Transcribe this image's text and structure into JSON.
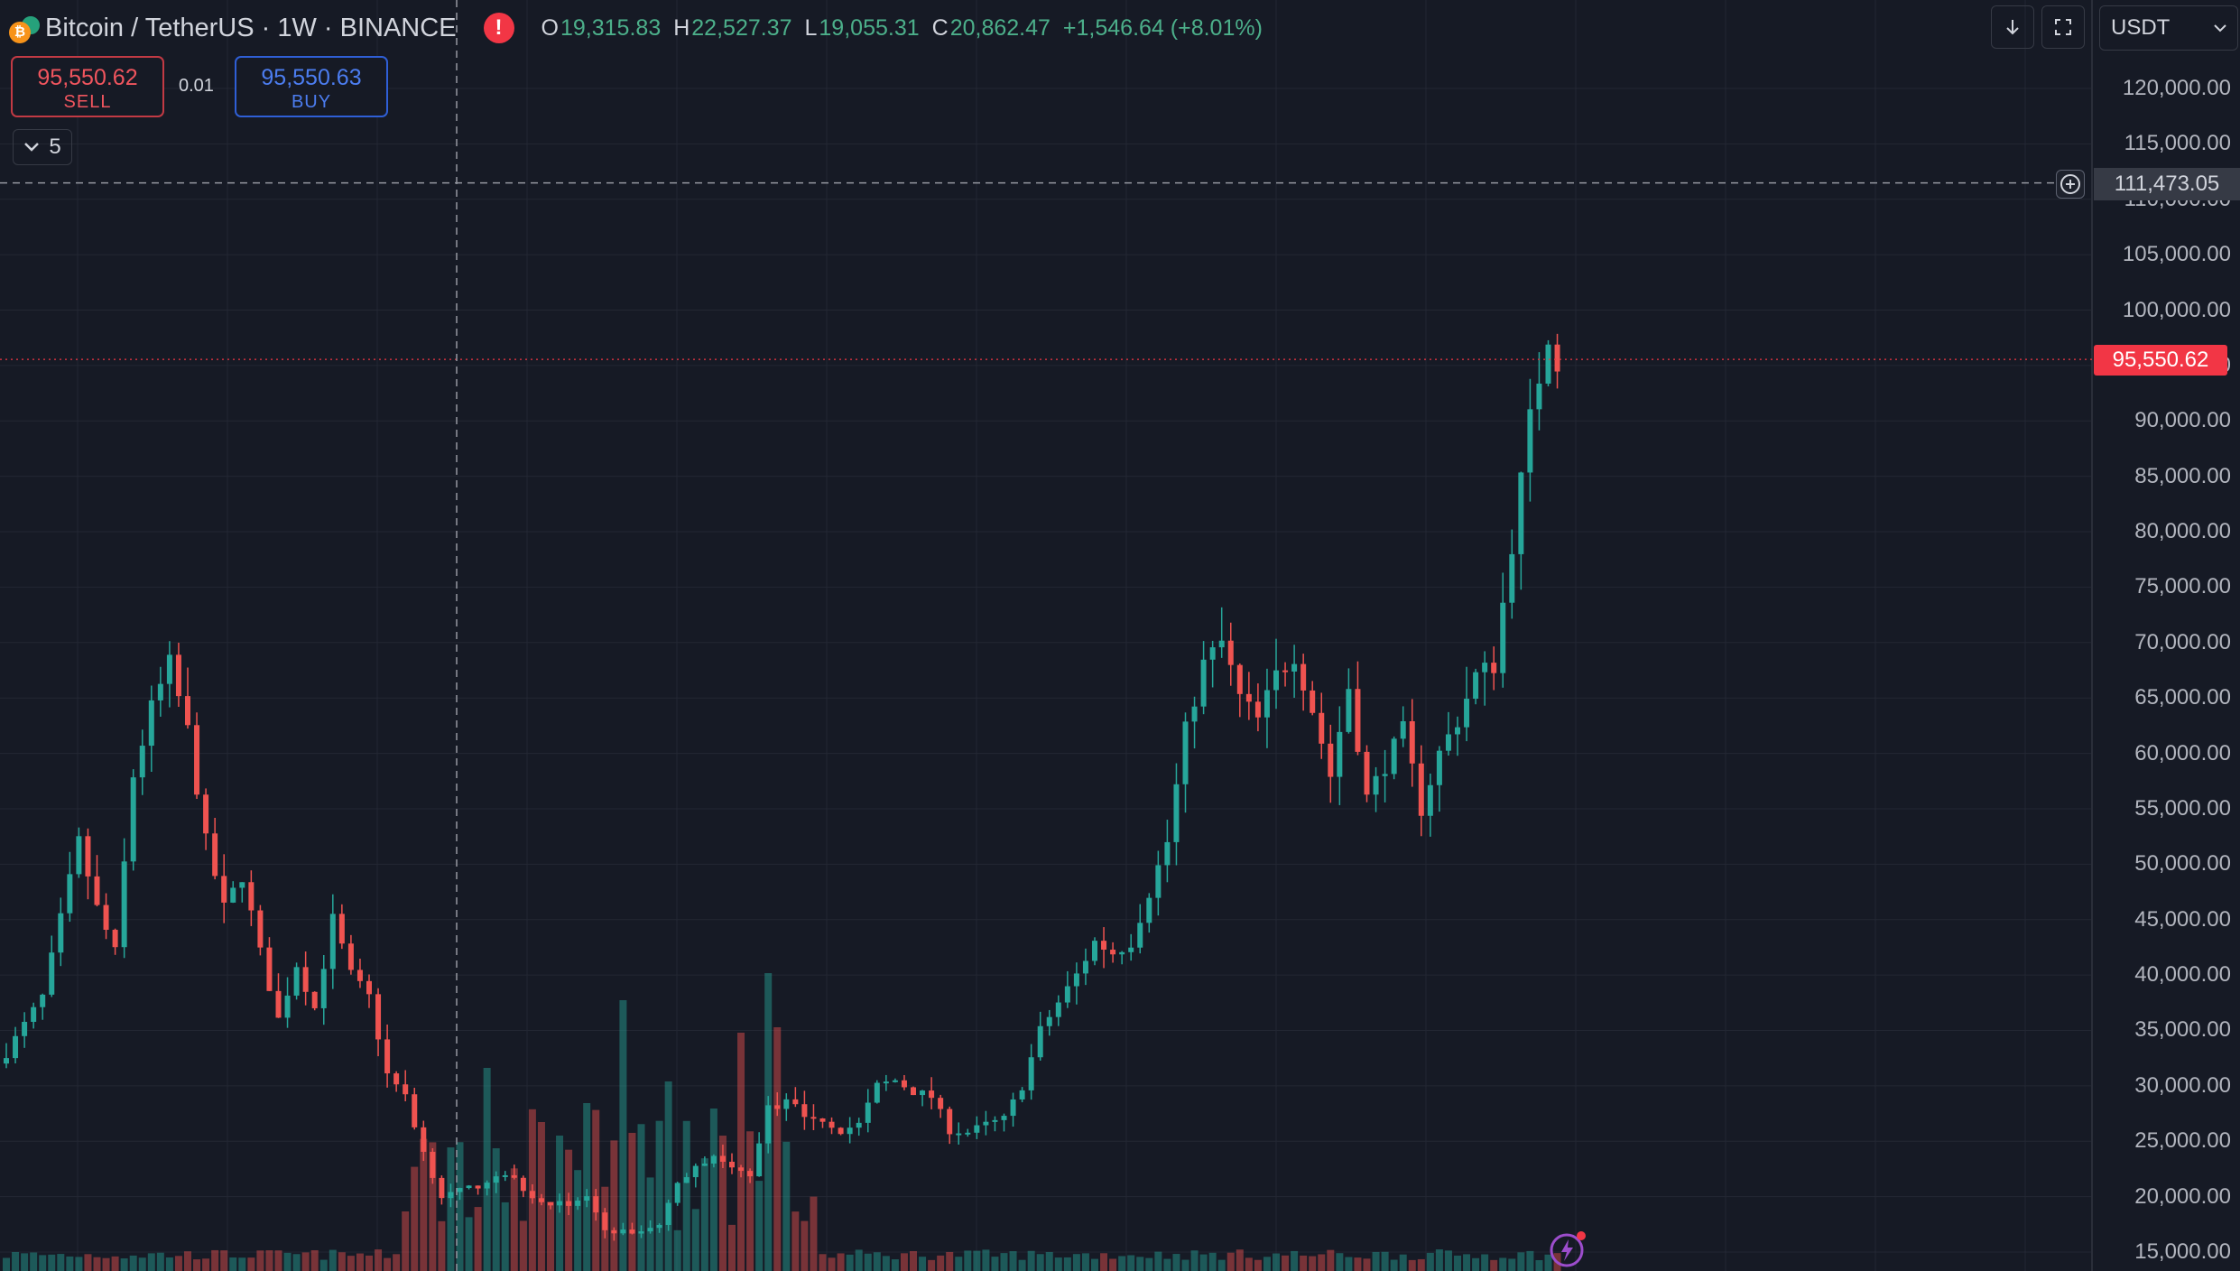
{
  "header": {
    "symbol_title": "Bitcoin / TetherUS · 1W · BINANCE",
    "ohlc": {
      "open_key": "O",
      "open": "19,315.83",
      "high_key": "H",
      "high": "22,527.37",
      "low_key": "L",
      "low": "19,055.31",
      "close_key": "C",
      "close": "20,862.47",
      "change": "+1,546.64 (+8.01%)"
    },
    "icons": [
      "bitcoin-icon",
      "tether-icon",
      "alert-icon"
    ]
  },
  "trading": {
    "sell_price": "95,550.62",
    "sell_label": "SELL",
    "spread": "0.01",
    "buy_price": "95,550.63",
    "buy_label": "BUY"
  },
  "indicators_toggle": {
    "count": "5"
  },
  "toolbar": {
    "currency": "USDT",
    "icons": [
      "download-icon",
      "fullscreen-icon",
      "chevron-down-icon"
    ]
  },
  "price_axis": {
    "labels": [
      "120,000.00",
      "115,000.00",
      "110,000.00",
      "105,000.00",
      "100,000.00",
      "95,000.00",
      "90,000.00",
      "85,000.00",
      "80,000.00",
      "75,000.00",
      "70,000.00",
      "65,000.00",
      "60,000.00",
      "55,000.00",
      "50,000.00",
      "45,000.00",
      "40,000.00",
      "35,000.00",
      "30,000.00",
      "25,000.00",
      "20,000.00",
      "15,000.00"
    ],
    "current_price": "95,550.62",
    "crosshair_price": "111,473.05"
  },
  "chart_data": {
    "type": "candlestick",
    "symbol": "Bitcoin / TetherUS",
    "interval": "1W",
    "exchange": "BINANCE",
    "ylim": [
      15000,
      120000
    ],
    "current_price": 95550.62,
    "crosshair_price": 111473.05,
    "colors": {
      "up": "#26A69A",
      "down": "#EF5350",
      "background": "#161A25",
      "grid": "#232733"
    },
    "anchors": [
      [
        0,
        33000
      ],
      [
        4,
        38000
      ],
      [
        6,
        45000
      ],
      [
        8,
        52000
      ],
      [
        10,
        46000
      ],
      [
        12,
        42000
      ],
      [
        14,
        58000
      ],
      [
        16,
        64000
      ],
      [
        18,
        68000
      ],
      [
        20,
        62000
      ],
      [
        22,
        52000
      ],
      [
        24,
        46000
      ],
      [
        26,
        49000
      ],
      [
        28,
        42000
      ],
      [
        30,
        36000
      ],
      [
        32,
        41000
      ],
      [
        34,
        37000
      ],
      [
        36,
        45000
      ],
      [
        38,
        40000
      ],
      [
        40,
        38000
      ],
      [
        42,
        31000
      ],
      [
        44,
        29000
      ],
      [
        46,
        24000
      ],
      [
        48,
        20000
      ],
      [
        50,
        20500
      ],
      [
        52,
        21000
      ],
      [
        54,
        22000
      ],
      [
        56,
        21500
      ],
      [
        58,
        20000
      ],
      [
        60,
        19500
      ],
      [
        62,
        19200
      ],
      [
        64,
        20000
      ],
      [
        66,
        17000
      ],
      [
        68,
        16800
      ],
      [
        70,
        16800
      ],
      [
        72,
        17500
      ],
      [
        74,
        21000
      ],
      [
        76,
        23000
      ],
      [
        78,
        23500
      ],
      [
        80,
        22500
      ],
      [
        82,
        22000
      ],
      [
        84,
        28000
      ],
      [
        86,
        28500
      ],
      [
        88,
        27500
      ],
      [
        90,
        27000
      ],
      [
        92,
        26000
      ],
      [
        94,
        26500
      ],
      [
        96,
        30000
      ],
      [
        98,
        30500
      ],
      [
        100,
        29500
      ],
      [
        102,
        29000
      ],
      [
        104,
        26000
      ],
      [
        106,
        25800
      ],
      [
        108,
        26500
      ],
      [
        110,
        27000
      ],
      [
        112,
        30000
      ],
      [
        114,
        35000
      ],
      [
        116,
        37500
      ],
      [
        118,
        40000
      ],
      [
        120,
        43000
      ],
      [
        122,
        42000
      ],
      [
        124,
        43000
      ],
      [
        126,
        47500
      ],
      [
        128,
        52000
      ],
      [
        130,
        62000
      ],
      [
        132,
        68000
      ],
      [
        134,
        70000
      ],
      [
        136,
        65000
      ],
      [
        138,
        63000
      ],
      [
        140,
        67000
      ],
      [
        142,
        69000
      ],
      [
        144,
        64000
      ],
      [
        146,
        58000
      ],
      [
        148,
        66000
      ],
      [
        150,
        56000
      ],
      [
        152,
        59000
      ],
      [
        154,
        62000
      ],
      [
        156,
        55000
      ],
      [
        158,
        60000
      ],
      [
        160,
        63000
      ],
      [
        162,
        67000
      ],
      [
        164,
        68000
      ],
      [
        166,
        79000
      ],
      [
        168,
        90000
      ],
      [
        170,
        98000
      ],
      [
        171,
        95550
      ]
    ],
    "volume_spikes": [
      [
        44,
        0.22
      ],
      [
        53,
        0.75
      ],
      [
        59,
        0.55
      ],
      [
        61,
        0.5
      ],
      [
        64,
        0.62
      ],
      [
        68,
        1.0
      ],
      [
        73,
        0.7
      ],
      [
        78,
        0.6
      ],
      [
        81,
        0.88
      ],
      [
        84,
        1.1
      ],
      [
        85,
        0.9
      ]
    ]
  }
}
